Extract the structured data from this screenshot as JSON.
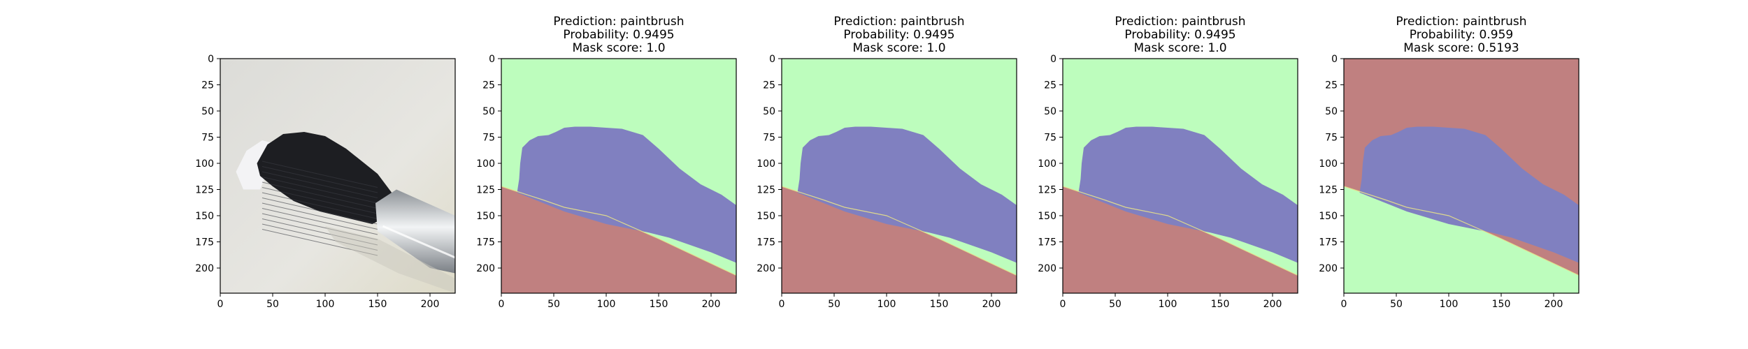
{
  "figure": {
    "axis": {
      "xticks": [
        "0",
        "50",
        "100",
        "150",
        "200"
      ],
      "yticks": [
        "0",
        "25",
        "50",
        "75",
        "100",
        "125",
        "150",
        "175",
        "200"
      ],
      "xtick_values": [
        0,
        50,
        100,
        150,
        200
      ],
      "ytick_values": [
        0,
        25,
        50,
        75,
        100,
        125,
        150,
        175,
        200
      ],
      "range": [
        0,
        224
      ]
    },
    "colors": {
      "red_region": "#c08080",
      "blue_region": "#8080c0",
      "green_region": "#bdfdbd",
      "border_yellow": "#e6e08a",
      "photo_background": "#e2e1dc",
      "bristle_dark": "#1d1e22",
      "ferrule": "#c6c9cc"
    },
    "panels": [
      {
        "id": "input-image",
        "kind": "photo",
        "title_lines": [],
        "image_description_icon": "paintbrush-photo"
      },
      {
        "id": "mask-1",
        "kind": "mask",
        "title_lines": [
          "Prediction: paintbrush",
          "Probability: 0.9495",
          "Mask score: 1.0"
        ],
        "top_region": "green",
        "bottom_region": "red"
      },
      {
        "id": "mask-2",
        "kind": "mask",
        "title_lines": [
          "Prediction: paintbrush",
          "Probability: 0.9495",
          "Mask score: 1.0"
        ],
        "top_region": "green",
        "bottom_region": "red"
      },
      {
        "id": "mask-3",
        "kind": "mask",
        "title_lines": [
          "Prediction: paintbrush",
          "Probability: 0.9495",
          "Mask score: 1.0"
        ],
        "top_region": "green",
        "bottom_region": "red"
      },
      {
        "id": "mask-4",
        "kind": "mask",
        "title_lines": [
          "Prediction: paintbrush",
          "Probability: 0.959",
          "Mask score: 0.5193"
        ],
        "top_region": "red",
        "bottom_region": "green"
      }
    ]
  }
}
